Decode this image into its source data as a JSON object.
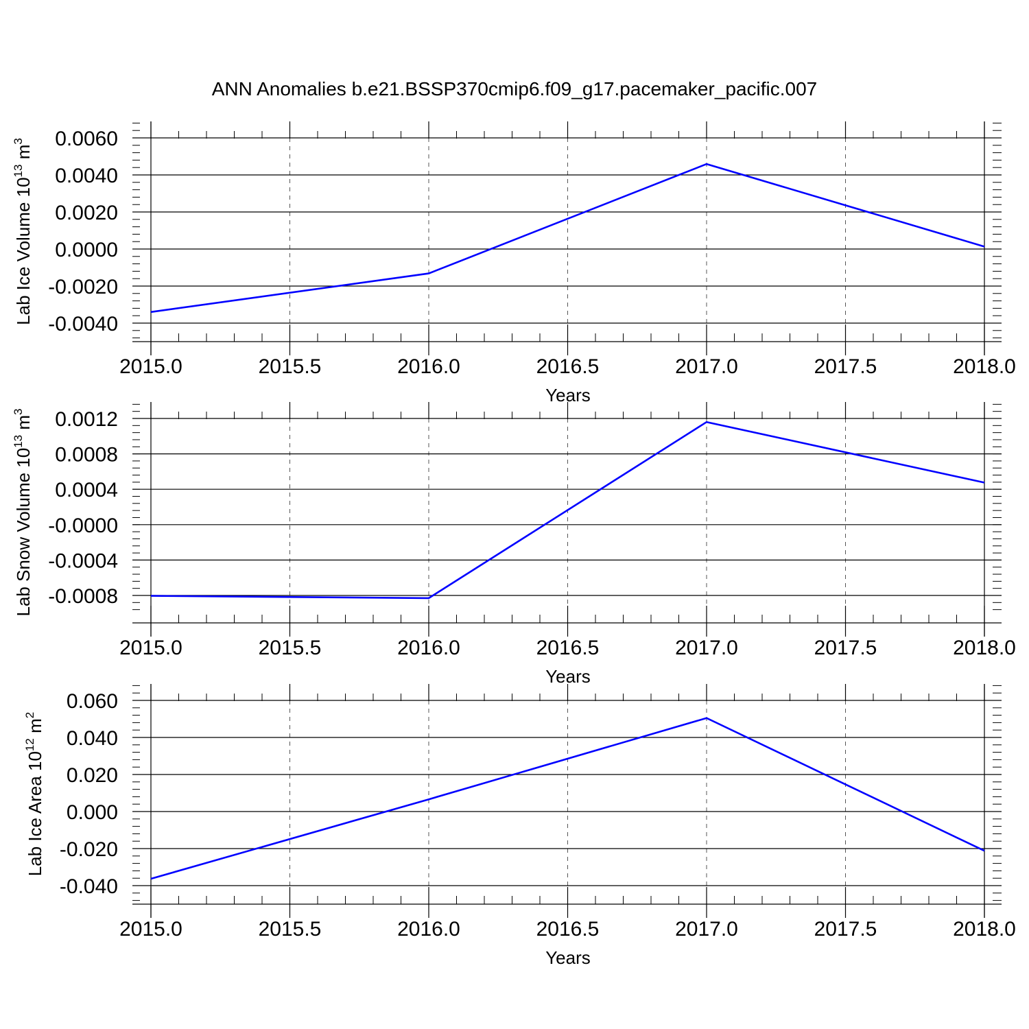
{
  "title": "ANN Anomalies b.e21.BSSP370cmip6.f09_g17.pacemaker_pacific.007",
  "line_color": "#0000ff",
  "chart_data": [
    {
      "type": "line",
      "ylabel_main": "Lab Ice Volume 10",
      "ylabel_exp": "13",
      "ylabel_unit": " m",
      "ylabel_unit_exp": "3",
      "xlabel": "Years",
      "xlim": [
        2015,
        2018
      ],
      "ylim": [
        -0.004,
        0.0065
      ],
      "x_ticks": [
        "2015.0",
        "2015.5",
        "2016.0",
        "2016.5",
        "2017.0",
        "2017.5",
        "2018.0"
      ],
      "y_ticks": [
        "-0.0040",
        "-0.0020",
        "0.0000",
        "0.0020",
        "0.0040",
        "0.0060"
      ],
      "x": [
        2015,
        2016,
        2017,
        2018
      ],
      "y": [
        -0.0034,
        -0.00132,
        0.00459,
        0.00013
      ],
      "grid": "vertical dashed"
    },
    {
      "type": "line",
      "ylabel_main": "Lab Snow Volume 10",
      "ylabel_exp": "13",
      "ylabel_unit": " m",
      "ylabel_unit_exp": "3",
      "xlabel": "Years",
      "xlim": [
        2015,
        2018
      ],
      "ylim": [
        -0.0009,
        0.0013
      ],
      "x_ticks": [
        "2015.0",
        "2015.5",
        "2016.0",
        "2016.5",
        "2017.0",
        "2017.5",
        "2018.0"
      ],
      "y_ticks": [
        "-0.0008",
        "-0.0004",
        "-0.0000",
        "0.0004",
        "0.0008",
        "0.0012"
      ],
      "x": [
        2015,
        2016,
        2017,
        2018
      ],
      "y": [
        -0.000805,
        -0.00083,
        0.00116,
        0.000475
      ],
      "grid": "vertical dashed"
    },
    {
      "type": "line",
      "ylabel_main": "Lab Ice Area 10",
      "ylabel_exp": "12",
      "ylabel_unit": " m",
      "ylabel_unit_exp": "2",
      "xlabel": "Years",
      "xlim": [
        2015,
        2018
      ],
      "ylim": [
        -0.04,
        0.065
      ],
      "x_ticks": [
        "2015.0",
        "2015.5",
        "2016.0",
        "2016.5",
        "2017.0",
        "2017.5",
        "2018.0"
      ],
      "y_ticks": [
        "-0.040",
        "-0.020",
        "0.000",
        "0.020",
        "0.040",
        "0.060"
      ],
      "x": [
        2015,
        2016,
        2017,
        2018
      ],
      "y": [
        -0.0363,
        0.0066,
        0.0505,
        -0.0212
      ],
      "grid": "vertical dashed"
    }
  ]
}
